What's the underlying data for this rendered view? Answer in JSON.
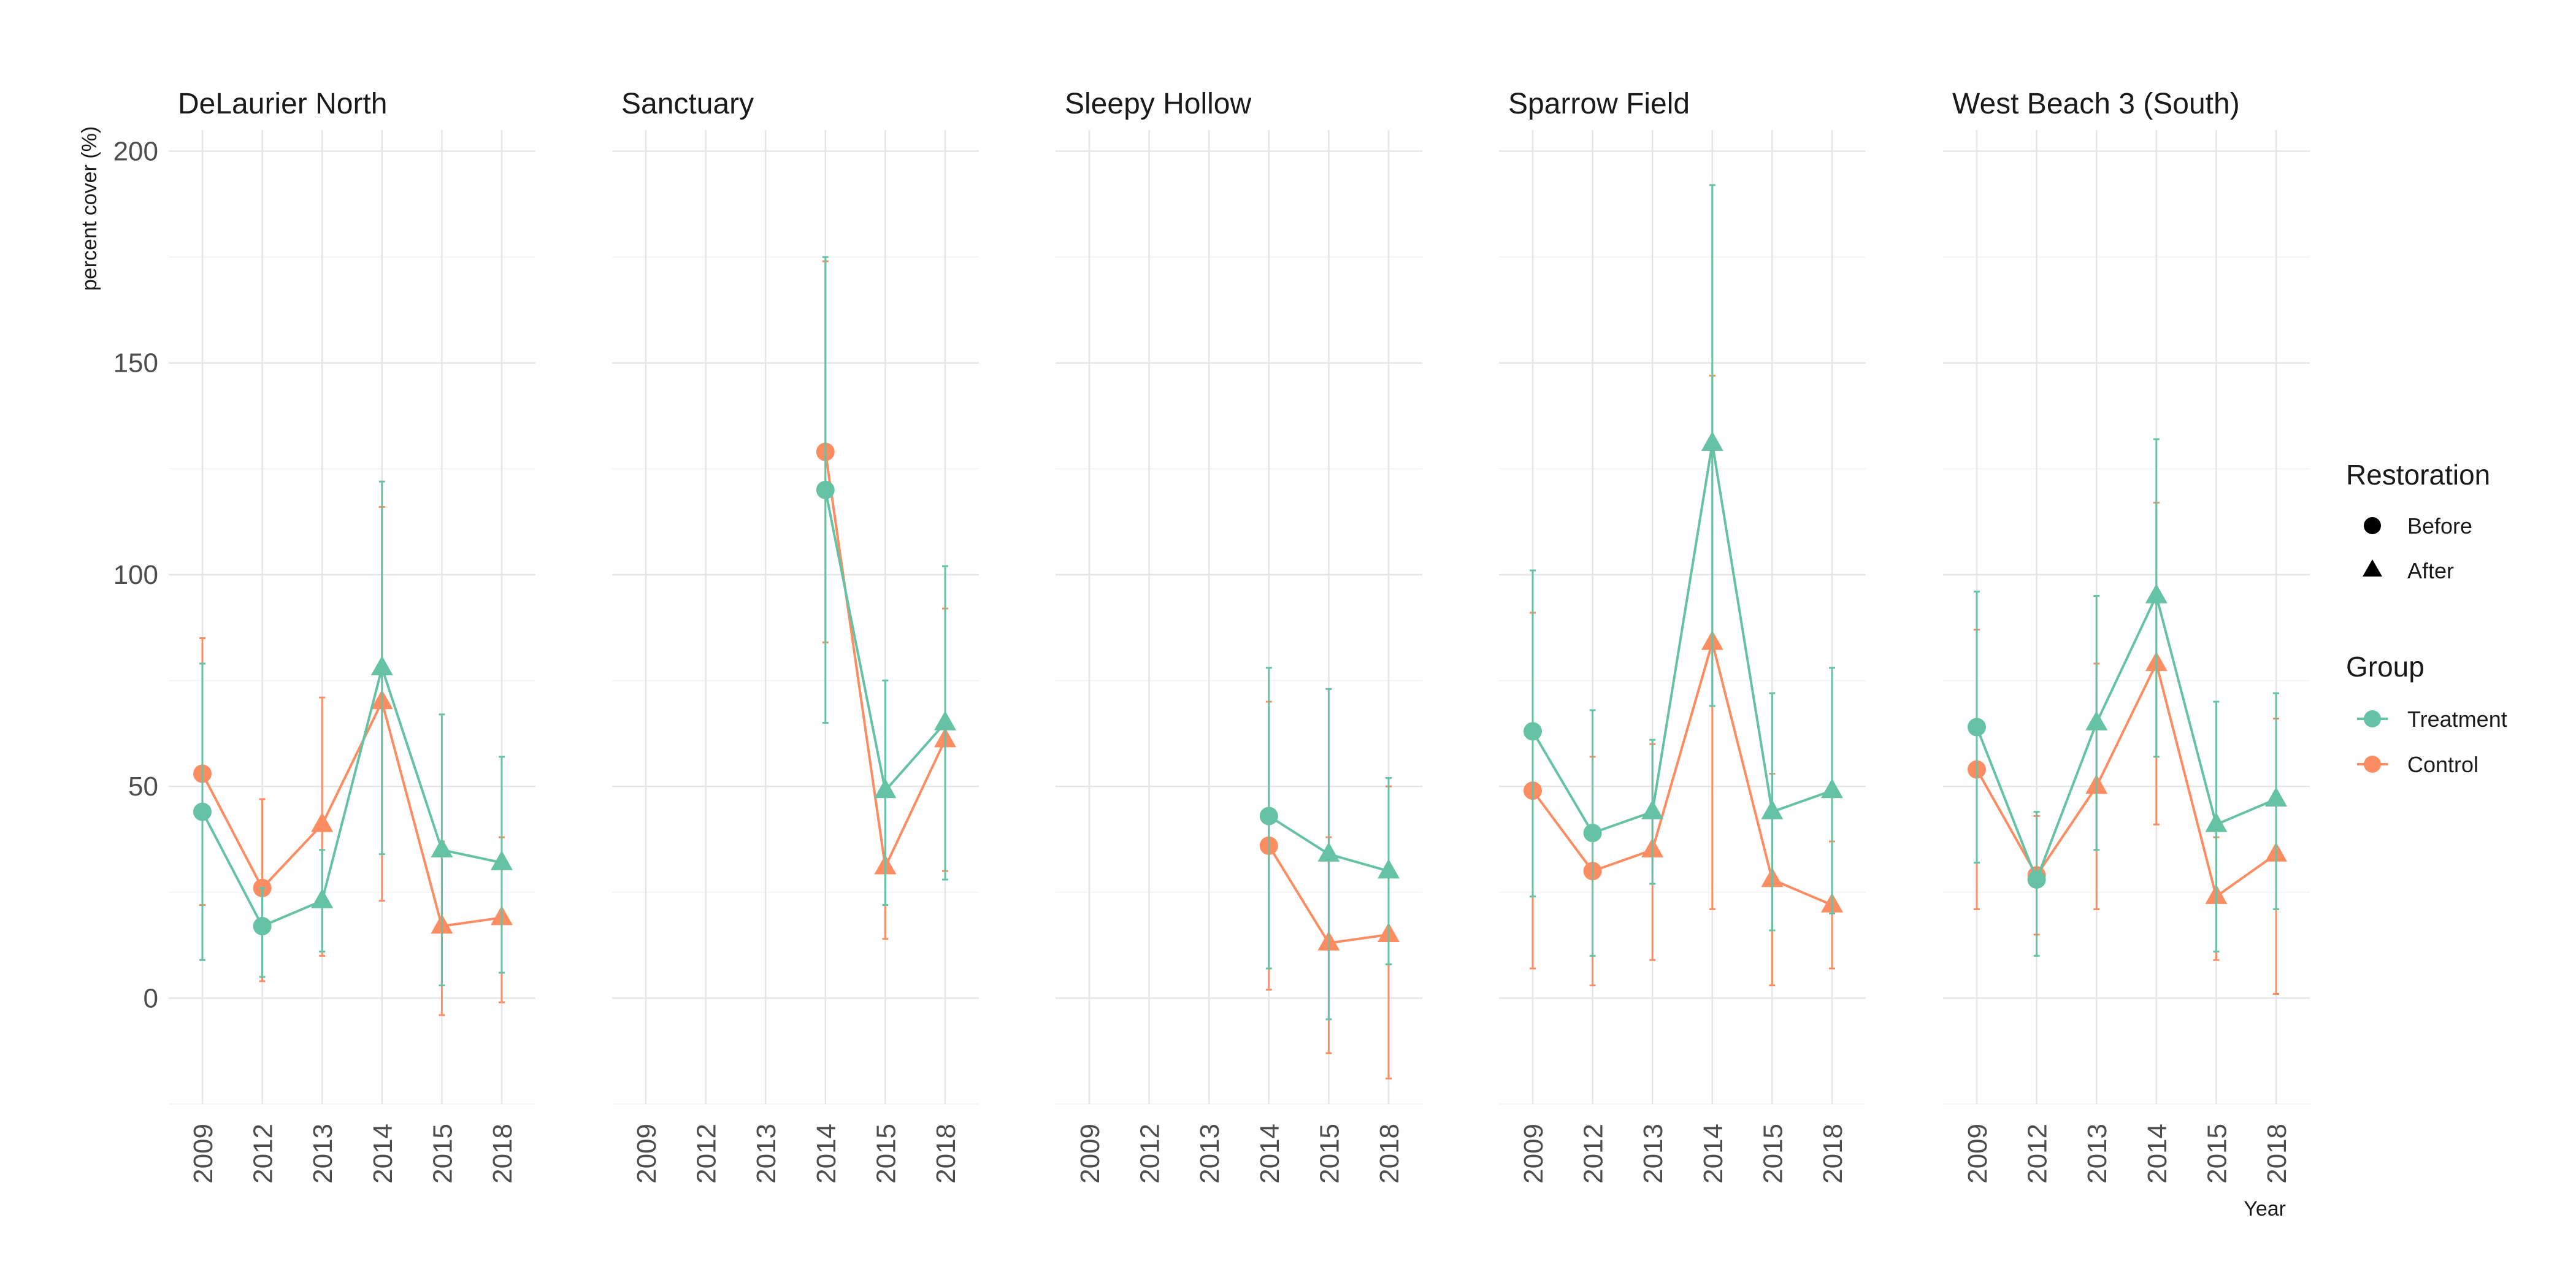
{
  "chart_data": {
    "type": "line",
    "ylabel": "percent cover (%)",
    "xlabel": "Year",
    "ylim": [
      -25,
      205
    ],
    "yticks": [
      0,
      50,
      100,
      150,
      200
    ],
    "categories": [
      "2009",
      "2012",
      "2013",
      "2014",
      "2015",
      "2018"
    ],
    "colors": {
      "Treatment": "#66c2a5",
      "Control": "#fc8d62"
    },
    "legend": {
      "restoration": {
        "title": "Restoration",
        "items": [
          {
            "label": "Before",
            "shape": "circle"
          },
          {
            "label": "After",
            "shape": "triangle"
          }
        ]
      },
      "group": {
        "title": "Group",
        "items": [
          {
            "label": "Treatment"
          },
          {
            "label": "Control"
          }
        ]
      },
      "placement": "right"
    },
    "facets": [
      {
        "title": "DeLaurier North",
        "series": [
          {
            "name": "Treatment",
            "points": [
              {
                "x": "2009",
                "y": 44,
                "lo": 9,
                "hi": 79,
                "phase": "Before"
              },
              {
                "x": "2012",
                "y": 17,
                "lo": 5,
                "hi": 26,
                "phase": "Before"
              },
              {
                "x": "2013",
                "y": 23,
                "lo": 11,
                "hi": 35,
                "phase": "After"
              },
              {
                "x": "2014",
                "y": 78,
                "lo": 34,
                "hi": 122,
                "phase": "After"
              },
              {
                "x": "2015",
                "y": 35,
                "lo": 3,
                "hi": 67,
                "phase": "After"
              },
              {
                "x": "2018",
                "y": 32,
                "lo": 6,
                "hi": 57,
                "phase": "After"
              }
            ]
          },
          {
            "name": "Control",
            "points": [
              {
                "x": "2009",
                "y": 53,
                "lo": 22,
                "hi": 85,
                "phase": "Before"
              },
              {
                "x": "2012",
                "y": 26,
                "lo": 4,
                "hi": 47,
                "phase": "Before"
              },
              {
                "x": "2013",
                "y": 41,
                "lo": 10,
                "hi": 71,
                "phase": "After"
              },
              {
                "x": "2014",
                "y": 70,
                "lo": 23,
                "hi": 116,
                "phase": "After"
              },
              {
                "x": "2015",
                "y": 17,
                "lo": -4,
                "hi": 37,
                "phase": "After"
              },
              {
                "x": "2018",
                "y": 19,
                "lo": -1,
                "hi": 38,
                "phase": "After"
              }
            ]
          }
        ]
      },
      {
        "title": "Sanctuary",
        "series": [
          {
            "name": "Treatment",
            "points": [
              {
                "x": "2014",
                "y": 120,
                "lo": 65,
                "hi": 175,
                "phase": "Before"
              },
              {
                "x": "2015",
                "y": 49,
                "lo": 22,
                "hi": 75,
                "phase": "After"
              },
              {
                "x": "2018",
                "y": 65,
                "lo": 28,
                "hi": 102,
                "phase": "After"
              }
            ]
          },
          {
            "name": "Control",
            "points": [
              {
                "x": "2014",
                "y": 129,
                "lo": 84,
                "hi": 174,
                "phase": "Before"
              },
              {
                "x": "2015",
                "y": 31,
                "lo": 14,
                "hi": 48,
                "phase": "After"
              },
              {
                "x": "2018",
                "y": 61,
                "lo": 30,
                "hi": 92,
                "phase": "After"
              }
            ]
          }
        ]
      },
      {
        "title": "Sleepy Hollow",
        "series": [
          {
            "name": "Treatment",
            "points": [
              {
                "x": "2014",
                "y": 43,
                "lo": 7,
                "hi": 78,
                "phase": "Before"
              },
              {
                "x": "2015",
                "y": 34,
                "lo": -5,
                "hi": 73,
                "phase": "After"
              },
              {
                "x": "2018",
                "y": 30,
                "lo": 8,
                "hi": 52,
                "phase": "After"
              }
            ]
          },
          {
            "name": "Control",
            "points": [
              {
                "x": "2014",
                "y": 36,
                "lo": 2,
                "hi": 70,
                "phase": "Before"
              },
              {
                "x": "2015",
                "y": 13,
                "lo": -13,
                "hi": 38,
                "phase": "After"
              },
              {
                "x": "2018",
                "y": 15,
                "lo": -19,
                "hi": 50,
                "phase": "After"
              }
            ]
          }
        ]
      },
      {
        "title": "Sparrow Field",
        "series": [
          {
            "name": "Treatment",
            "points": [
              {
                "x": "2009",
                "y": 63,
                "lo": 24,
                "hi": 101,
                "phase": "Before"
              },
              {
                "x": "2012",
                "y": 39,
                "lo": 10,
                "hi": 68,
                "phase": "Before"
              },
              {
                "x": "2013",
                "y": 44,
                "lo": 27,
                "hi": 61,
                "phase": "After"
              },
              {
                "x": "2014",
                "y": 131,
                "lo": 69,
                "hi": 192,
                "phase": "After"
              },
              {
                "x": "2015",
                "y": 44,
                "lo": 16,
                "hi": 72,
                "phase": "After"
              },
              {
                "x": "2018",
                "y": 49,
                "lo": 20,
                "hi": 78,
                "phase": "After"
              }
            ]
          },
          {
            "name": "Control",
            "points": [
              {
                "x": "2009",
                "y": 49,
                "lo": 7,
                "hi": 91,
                "phase": "Before"
              },
              {
                "x": "2012",
                "y": 30,
                "lo": 3,
                "hi": 57,
                "phase": "Before"
              },
              {
                "x": "2013",
                "y": 35,
                "lo": 9,
                "hi": 60,
                "phase": "After"
              },
              {
                "x": "2014",
                "y": 84,
                "lo": 21,
                "hi": 147,
                "phase": "After"
              },
              {
                "x": "2015",
                "y": 28,
                "lo": 3,
                "hi": 53,
                "phase": "After"
              },
              {
                "x": "2018",
                "y": 22,
                "lo": 7,
                "hi": 37,
                "phase": "After"
              }
            ]
          }
        ]
      },
      {
        "title": "West Beach 3 (South)",
        "series": [
          {
            "name": "Treatment",
            "points": [
              {
                "x": "2009",
                "y": 64,
                "lo": 32,
                "hi": 96,
                "phase": "Before"
              },
              {
                "x": "2012",
                "y": 28,
                "lo": 10,
                "hi": 44,
                "phase": "Before"
              },
              {
                "x": "2013",
                "y": 65,
                "lo": 35,
                "hi": 95,
                "phase": "After"
              },
              {
                "x": "2014",
                "y": 95,
                "lo": 57,
                "hi": 132,
                "phase": "After"
              },
              {
                "x": "2015",
                "y": 41,
                "lo": 11,
                "hi": 70,
                "phase": "After"
              },
              {
                "x": "2018",
                "y": 47,
                "lo": 21,
                "hi": 72,
                "phase": "After"
              }
            ]
          },
          {
            "name": "Control",
            "points": [
              {
                "x": "2009",
                "y": 54,
                "lo": 21,
                "hi": 87,
                "phase": "Before"
              },
              {
                "x": "2012",
                "y": 29,
                "lo": 15,
                "hi": 43,
                "phase": "Before"
              },
              {
                "x": "2013",
                "y": 50,
                "lo": 21,
                "hi": 79,
                "phase": "After"
              },
              {
                "x": "2014",
                "y": 79,
                "lo": 41,
                "hi": 117,
                "phase": "After"
              },
              {
                "x": "2015",
                "y": 24,
                "lo": 9,
                "hi": 38,
                "phase": "After"
              },
              {
                "x": "2018",
                "y": 34,
                "lo": 1,
                "hi": 66,
                "phase": "After"
              }
            ]
          }
        ]
      }
    ]
  }
}
